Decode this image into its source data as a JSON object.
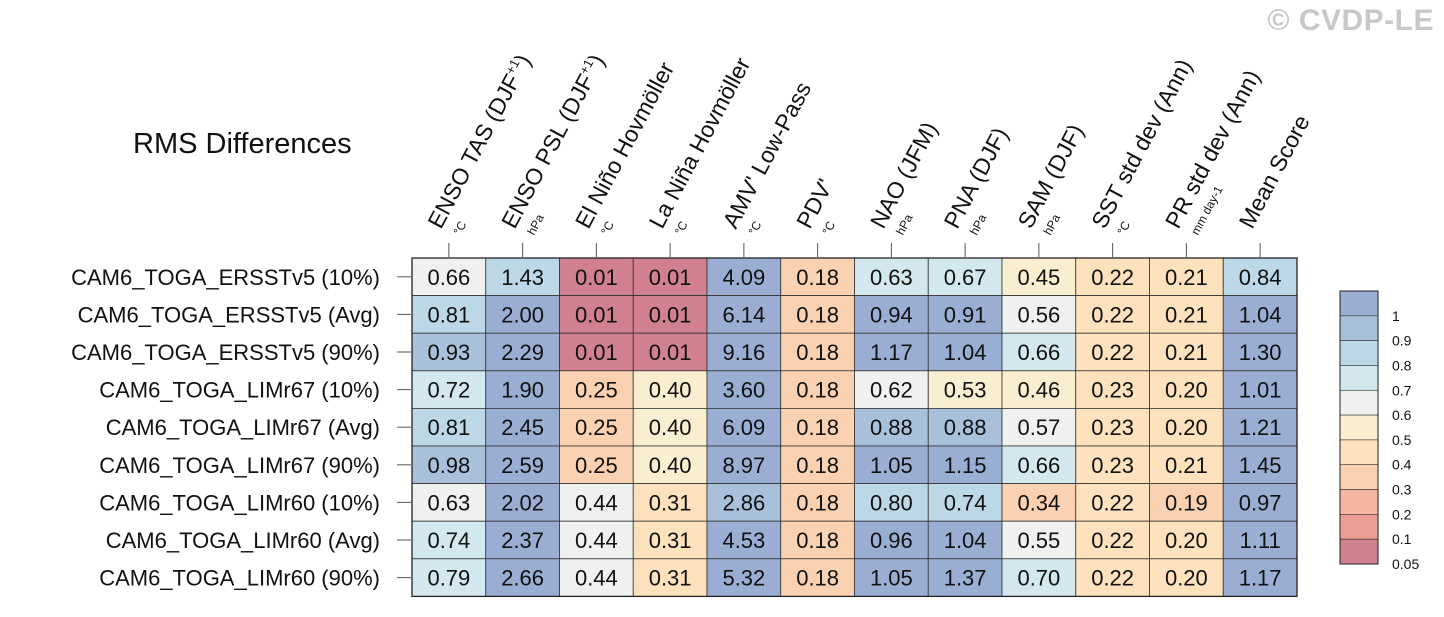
{
  "watermark": "© CVDP-LE",
  "chart_data": {
    "type": "heatmap",
    "title": "RMS Differences",
    "columns": [
      {
        "label": "ENSO TAS (DJF",
        "sup": "+1",
        "close": ")",
        "unit": "°C"
      },
      {
        "label": "ENSO PSL (DJF",
        "sup": "+1",
        "close": ")",
        "unit": "hPa"
      },
      {
        "label": "El Niño Hovmöller",
        "sup": "",
        "close": "",
        "unit": "°C"
      },
      {
        "label": "La Niña Hovmöller",
        "sup": "",
        "close": "",
        "unit": "°C"
      },
      {
        "label": "AMV' Low-Pass",
        "sup": "",
        "close": "",
        "unit": "°C"
      },
      {
        "label": "PDV'",
        "sup": "",
        "close": "",
        "unit": "°C"
      },
      {
        "label": "NAO (JFM)",
        "sup": "",
        "close": "",
        "unit": "hPa"
      },
      {
        "label": "PNA (DJF)",
        "sup": "",
        "close": "",
        "unit": "hPa"
      },
      {
        "label": "SAM (DJF)",
        "sup": "",
        "close": "",
        "unit": "hPa"
      },
      {
        "label": "SST std dev (Ann)",
        "sup": "",
        "close": "",
        "unit": "°C"
      },
      {
        "label": "PR std dev (Ann)",
        "sup": "",
        "close": "",
        "unit": "mm day-1"
      },
      {
        "label": "Mean Score",
        "sup": "",
        "close": "",
        "unit": ""
      }
    ],
    "rows": [
      "CAM6_TOGA_ERSSTv5 (10%)",
      "CAM6_TOGA_ERSSTv5 (Avg)",
      "CAM6_TOGA_ERSSTv5 (90%)",
      "CAM6_TOGA_LIMr67 (10%)",
      "CAM6_TOGA_LIMr67 (Avg)",
      "CAM6_TOGA_LIMr67 (90%)",
      "CAM6_TOGA_LIMr60 (10%)",
      "CAM6_TOGA_LIMr60 (Avg)",
      "CAM6_TOGA_LIMr60 (90%)"
    ],
    "values": [
      [
        "0.66",
        "1.43",
        "0.01",
        "0.01",
        "4.09",
        "0.18",
        "0.63",
        "0.67",
        "0.45",
        "0.22",
        "0.21",
        "0.84"
      ],
      [
        "0.81",
        "2.00",
        "0.01",
        "0.01",
        "6.14",
        "0.18",
        "0.94",
        "0.91",
        "0.56",
        "0.22",
        "0.21",
        "1.04"
      ],
      [
        "0.93",
        "2.29",
        "0.01",
        "0.01",
        "9.16",
        "0.18",
        "1.17",
        "1.04",
        "0.66",
        "0.22",
        "0.21",
        "1.30"
      ],
      [
        "0.72",
        "1.90",
        "0.25",
        "0.40",
        "3.60",
        "0.18",
        "0.62",
        "0.53",
        "0.46",
        "0.23",
        "0.20",
        "1.01"
      ],
      [
        "0.81",
        "2.45",
        "0.25",
        "0.40",
        "6.09",
        "0.18",
        "0.88",
        "0.88",
        "0.57",
        "0.23",
        "0.20",
        "1.21"
      ],
      [
        "0.98",
        "2.59",
        "0.25",
        "0.40",
        "8.97",
        "0.18",
        "1.05",
        "1.15",
        "0.66",
        "0.23",
        "0.21",
        "1.45"
      ],
      [
        "0.63",
        "2.02",
        "0.44",
        "0.31",
        "2.86",
        "0.18",
        "0.80",
        "0.74",
        "0.34",
        "0.22",
        "0.19",
        "0.97"
      ],
      [
        "0.74",
        "2.37",
        "0.44",
        "0.31",
        "4.53",
        "0.18",
        "0.96",
        "1.04",
        "0.55",
        "0.22",
        "0.20",
        "1.11"
      ],
      [
        "0.79",
        "2.66",
        "0.44",
        "0.31",
        "5.32",
        "0.18",
        "1.05",
        "1.37",
        "0.70",
        "0.22",
        "0.20",
        "1.17"
      ]
    ],
    "colorbar": {
      "labels": [
        "1",
        "0.9",
        "0.8",
        "0.7",
        "0.6",
        "0.5",
        "0.4",
        "0.3",
        "0.2",
        "0.1",
        "0.05"
      ],
      "colors": [
        "#9aaed3",
        "#a9c0da",
        "#bcd8e6",
        "#d3e8ee",
        "#eef1ee",
        "#faeed1",
        "#fde2bd",
        "#fad2b1",
        "#f5b6a0",
        "#ec9c92",
        "#d1808f"
      ]
    }
  }
}
